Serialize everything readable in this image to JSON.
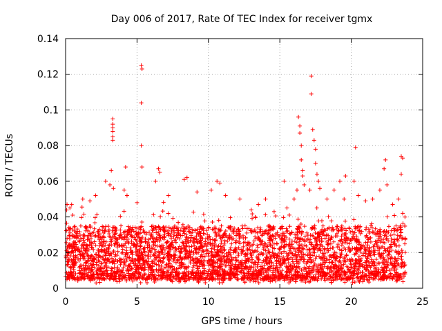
{
  "chart_data": {
    "type": "scatter",
    "title": "Day 006 of 2017, Rate Of TEC Index for receiver tgmx",
    "xlabel": "GPS time / hours",
    "ylabel": "ROTI / TECUs",
    "xlim": [
      0,
      25
    ],
    "ylim": [
      0,
      0.14
    ],
    "xticks": [
      0,
      5,
      10,
      15,
      20,
      25
    ],
    "yticks": [
      0,
      0.02,
      0.04,
      0.06,
      0.08,
      0.1,
      0.12,
      0.14
    ],
    "grid": true,
    "marker": "+",
    "series": [
      {
        "name": "ROTI",
        "color": "#ff0000",
        "bulk": {
          "x_range": [
            0,
            23.8
          ],
          "typical_range": [
            0.005,
            0.035
          ],
          "note": "dense band of several thousand points sampled throughout the day"
        },
        "points": [
          [
            0.1,
            0.047
          ],
          [
            0.3,
            0.045
          ],
          [
            0.5,
            0.041
          ],
          [
            1.2,
            0.05
          ],
          [
            1.7,
            0.049
          ],
          [
            2.1,
            0.052
          ],
          [
            2.8,
            0.06
          ],
          [
            3.1,
            0.058
          ],
          [
            3.2,
            0.066
          ],
          [
            3.3,
            0.095
          ],
          [
            3.3,
            0.092
          ],
          [
            3.3,
            0.09
          ],
          [
            3.3,
            0.088
          ],
          [
            3.3,
            0.085
          ],
          [
            3.3,
            0.083
          ],
          [
            3.35,
            0.056
          ],
          [
            4.1,
            0.055
          ],
          [
            4.2,
            0.068
          ],
          [
            4.3,
            0.052
          ],
          [
            5.0,
            0.048
          ],
          [
            5.3,
            0.125
          ],
          [
            5.35,
            0.123
          ],
          [
            5.3,
            0.104
          ],
          [
            5.3,
            0.08
          ],
          [
            5.35,
            0.068
          ],
          [
            6.3,
            0.06
          ],
          [
            6.5,
            0.067
          ],
          [
            6.6,
            0.065
          ],
          [
            7.2,
            0.052
          ],
          [
            8.3,
            0.061
          ],
          [
            8.5,
            0.062
          ],
          [
            9.2,
            0.054
          ],
          [
            10.2,
            0.055
          ],
          [
            10.6,
            0.06
          ],
          [
            10.8,
            0.059
          ],
          [
            11.2,
            0.052
          ],
          [
            12.2,
            0.05
          ],
          [
            13.0,
            0.044
          ],
          [
            13.5,
            0.047
          ],
          [
            14.0,
            0.05
          ],
          [
            14.6,
            0.043
          ],
          [
            15.3,
            0.06
          ],
          [
            15.5,
            0.045
          ],
          [
            16.0,
            0.05
          ],
          [
            16.2,
            0.055
          ],
          [
            16.3,
            0.096
          ],
          [
            16.4,
            0.091
          ],
          [
            16.4,
            0.087
          ],
          [
            16.5,
            0.08
          ],
          [
            16.5,
            0.072
          ],
          [
            16.6,
            0.066
          ],
          [
            16.6,
            0.063
          ],
          [
            16.7,
            0.058
          ],
          [
            17.1,
            0.055
          ],
          [
            17.2,
            0.119
          ],
          [
            17.2,
            0.109
          ],
          [
            17.3,
            0.089
          ],
          [
            17.4,
            0.083
          ],
          [
            17.5,
            0.078
          ],
          [
            17.5,
            0.07
          ],
          [
            17.6,
            0.064
          ],
          [
            17.7,
            0.06
          ],
          [
            17.8,
            0.056
          ],
          [
            18.3,
            0.05
          ],
          [
            18.8,
            0.055
          ],
          [
            19.2,
            0.06
          ],
          [
            19.5,
            0.05
          ],
          [
            19.6,
            0.063
          ],
          [
            20.2,
            0.06
          ],
          [
            20.3,
            0.079
          ],
          [
            20.5,
            0.052
          ],
          [
            21.0,
            0.049
          ],
          [
            21.5,
            0.05
          ],
          [
            22.0,
            0.055
          ],
          [
            22.3,
            0.067
          ],
          [
            22.4,
            0.072
          ],
          [
            22.5,
            0.058
          ],
          [
            22.9,
            0.047
          ],
          [
            23.3,
            0.05
          ],
          [
            23.5,
            0.074
          ],
          [
            23.6,
            0.073
          ],
          [
            23.5,
            0.064
          ],
          [
            23.6,
            0.042
          ]
        ]
      }
    ]
  }
}
